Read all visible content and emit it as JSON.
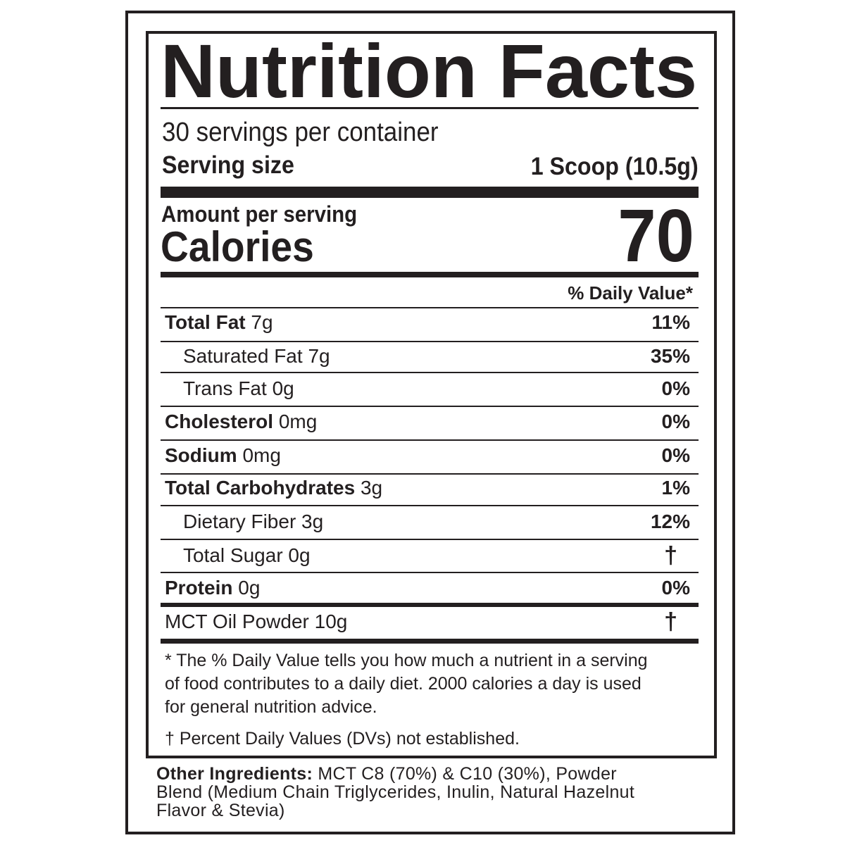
{
  "label": {
    "title": "Nutrition Facts",
    "servings_per_container": "30 servings per container",
    "serving_size_label": "Serving size",
    "serving_size_value": "1 Scoop (10.5g)",
    "amount_per_serving": "Amount per serving",
    "calories_label": "Calories",
    "calories_value": "70",
    "daily_value_header": "% Daily Value*",
    "nutrients": [
      {
        "name": "Total Fat",
        "amount": "7g",
        "dv": "11%",
        "bold": true
      },
      {
        "name": "Saturated Fat",
        "amount": "7g",
        "dv": "35%",
        "bold": false
      },
      {
        "name": "Trans Fat",
        "amount": "0g",
        "dv": "0%",
        "bold": false
      },
      {
        "name": "Cholesterol",
        "amount": "0mg",
        "dv": "0%",
        "bold": true
      },
      {
        "name": "Sodium",
        "amount": "0mg",
        "dv": "0%",
        "bold": true
      },
      {
        "name": "Total Carbohydrates",
        "amount": "3g",
        "dv": "1%",
        "bold": true
      },
      {
        "name": "Dietary Fiber",
        "amount": "3g",
        "dv": "12%",
        "bold": false
      },
      {
        "name": "Total Sugar",
        "amount": "0g",
        "dv": "†",
        "bold": false
      },
      {
        "name": "Protein",
        "amount": "0g",
        "dv": "0%",
        "bold": true
      },
      {
        "name": "MCT Oil Powder",
        "amount": "10g",
        "dv": "†",
        "bold": false
      }
    ],
    "footnote_lines": [
      "* The % Daily Value tells you how much a nutrient in a serving",
      "of food contributes to a daily diet. 2000 calories a day is used",
      "for general nutrition advice."
    ],
    "dagger_note": "† Percent Daily Values (DVs) not established."
  },
  "ingredients": {
    "label": "Other Ingredients:",
    "lines": [
      " MCT C8 (70%) & C10 (30%), Powder",
      "Blend (Medium Chain Triglycerides, Inulin, Natural Hazelnut",
      "Flavor & Stevia)"
    ]
  }
}
